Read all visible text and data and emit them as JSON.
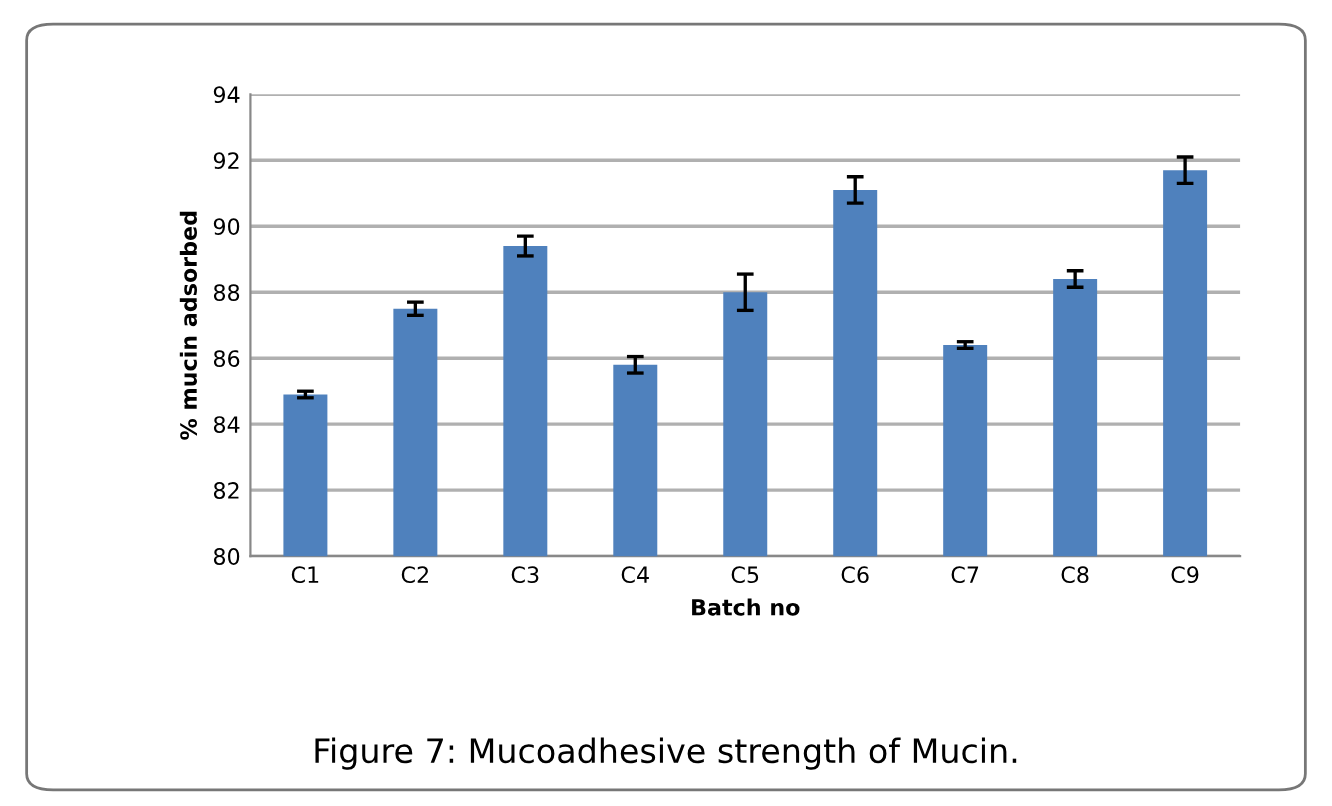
{
  "chart_data": {
    "type": "bar",
    "xlabel": "Batch no",
    "ylabel": "% mucin adsorbed",
    "categories": [
      "C1",
      "C2",
      "C3",
      "C4",
      "C5",
      "C6",
      "C7",
      "C8",
      "C9"
    ],
    "values": [
      84.9,
      87.5,
      89.4,
      85.8,
      88.0,
      91.1,
      86.4,
      88.4,
      91.7
    ],
    "errors": [
      0.1,
      0.2,
      0.3,
      0.25,
      0.55,
      0.4,
      0.1,
      0.25,
      0.4
    ],
    "color": "#4f81bd",
    "ylim": [
      80,
      94
    ],
    "yticks": [
      80,
      82,
      84,
      86,
      88,
      90,
      92,
      94
    ],
    "grid": "y",
    "annotations": [
      "Figure 7: Mucoadhesive strength of Mucin."
    ]
  }
}
